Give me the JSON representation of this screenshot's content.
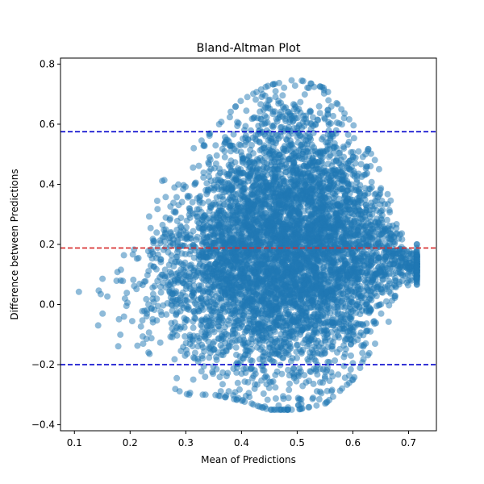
{
  "chart_data": {
    "type": "scatter",
    "title": "Bland-Altman Plot",
    "xlabel": "Mean of Predictions",
    "ylabel": "Difference between Predictions",
    "xlim": [
      0.075,
      0.75
    ],
    "ylim": [
      -0.42,
      0.82
    ],
    "x_ticks": [
      0.1,
      0.2,
      0.3,
      0.4,
      0.5,
      0.6,
      0.7
    ],
    "x_tick_labels": [
      "0.1",
      "0.2",
      "0.3",
      "0.4",
      "0.5",
      "0.6",
      "0.7"
    ],
    "y_ticks": [
      -0.4,
      -0.2,
      0.0,
      0.2,
      0.4,
      0.6,
      0.8
    ],
    "y_tick_labels": [
      "−0.4",
      "−0.2",
      "0.0",
      "0.2",
      "0.4",
      "0.6",
      "0.8"
    ],
    "grid": false,
    "point_color": "#1f77b4",
    "point_alpha": 0.5,
    "scatter_envelope": {
      "upper": [
        [
          0.11,
          0.05
        ],
        [
          0.15,
          0.13
        ],
        [
          0.2,
          0.25
        ],
        [
          0.25,
          0.42
        ],
        [
          0.3,
          0.5
        ],
        [
          0.35,
          0.58
        ],
        [
          0.4,
          0.68
        ],
        [
          0.45,
          0.73
        ],
        [
          0.5,
          0.75
        ],
        [
          0.55,
          0.72
        ],
        [
          0.6,
          0.6
        ],
        [
          0.65,
          0.45
        ],
        [
          0.7,
          0.2
        ]
      ],
      "lower": [
        [
          0.11,
          0.04
        ],
        [
          0.15,
          -0.15
        ],
        [
          0.2,
          -0.2
        ],
        [
          0.25,
          -0.25
        ],
        [
          0.3,
          -0.3
        ],
        [
          0.35,
          -0.3
        ],
        [
          0.4,
          -0.32
        ],
        [
          0.45,
          -0.35
        ],
        [
          0.5,
          -0.35
        ],
        [
          0.55,
          -0.33
        ],
        [
          0.6,
          -0.25
        ],
        [
          0.65,
          -0.1
        ],
        [
          0.7,
          0.05
        ]
      ],
      "approx_point_count": 6000
    },
    "reference_lines": [
      {
        "name": "upper-loa-line",
        "y": 0.575,
        "color": "#0000cc",
        "style": "dashed"
      },
      {
        "name": "mean-diff-line",
        "y": 0.188,
        "color": "#d62728",
        "style": "dashed"
      },
      {
        "name": "lower-loa-line",
        "y": -0.2,
        "color": "#0000cc",
        "style": "dashed"
      }
    ]
  }
}
